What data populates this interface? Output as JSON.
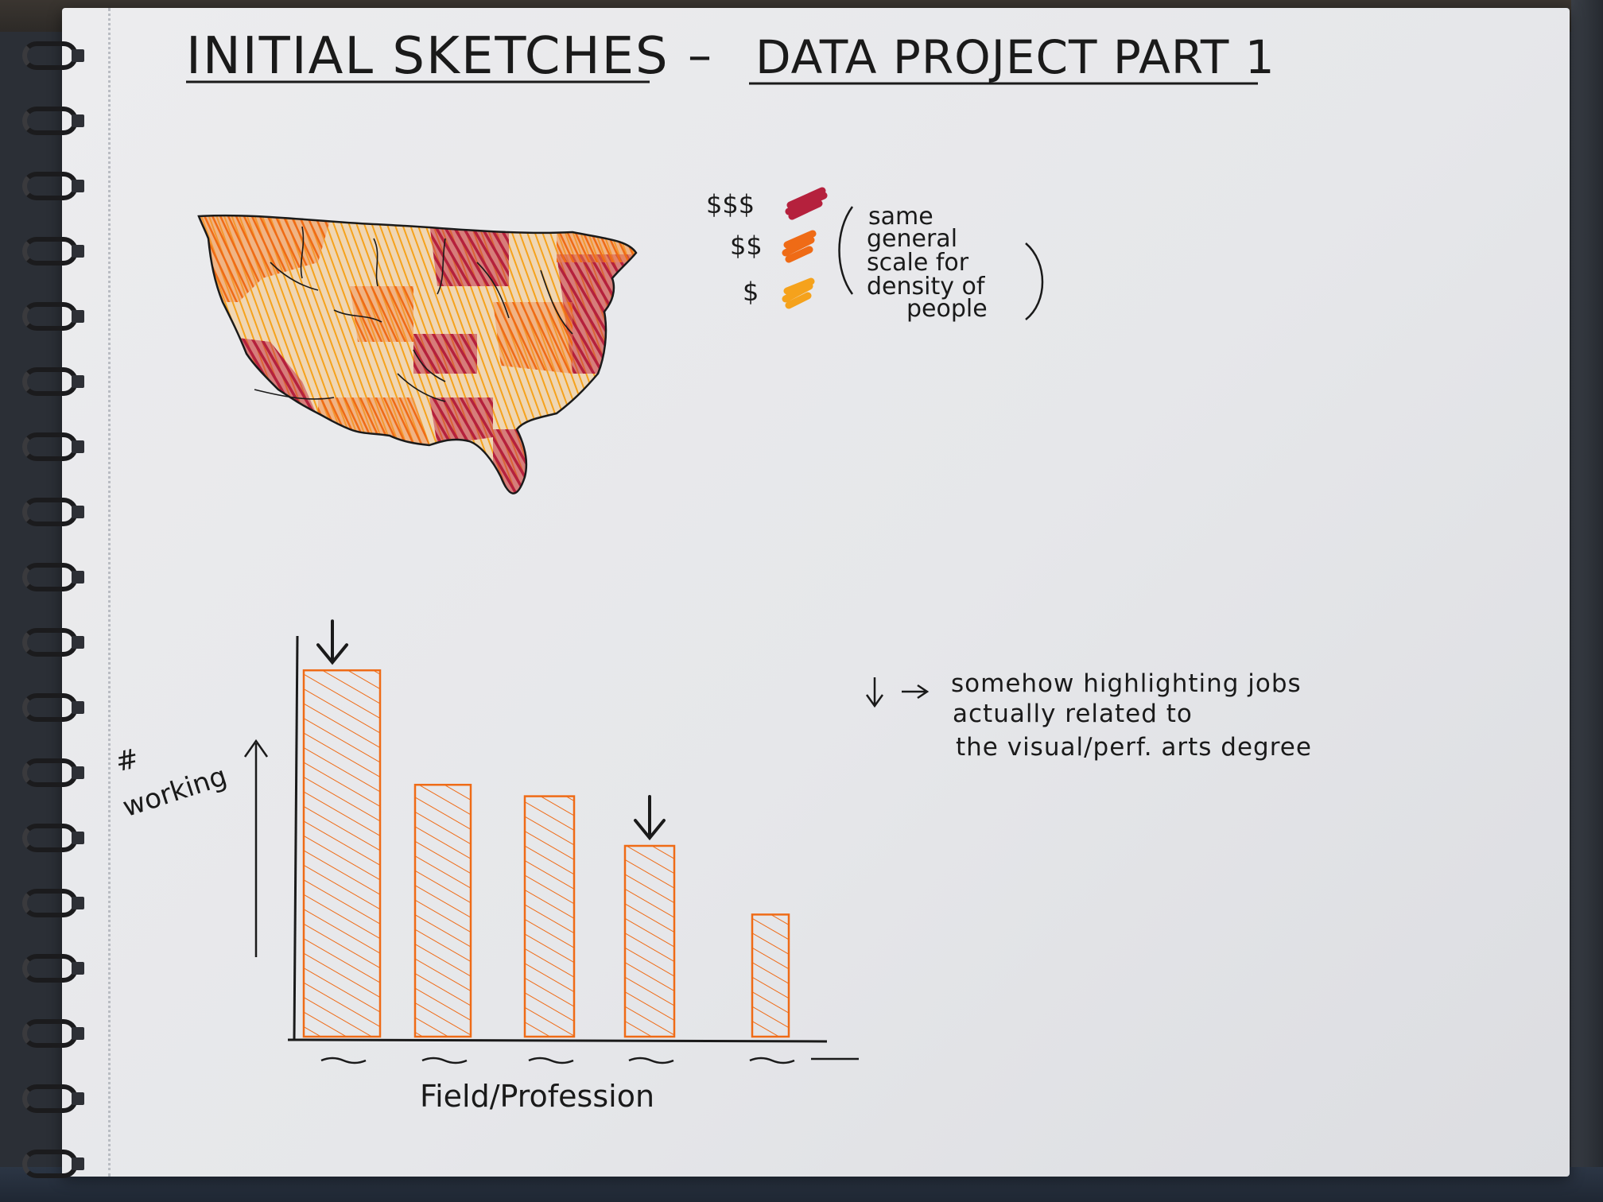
{
  "title": {
    "left": "INITIAL SKETCHES",
    "dash": "–",
    "right": "DATA PROJECT PART 1"
  },
  "map_legend": {
    "items": [
      {
        "label": "$$$",
        "color": "#b5213d"
      },
      {
        "label": "$$",
        "color": "#ef6b16"
      },
      {
        "label": "$",
        "color": "#f5a21c"
      }
    ],
    "note_lines": [
      "same",
      "general",
      "scale for",
      "density of",
      "people"
    ]
  },
  "chart_data": {
    "type": "bar",
    "ylabel_lines": [
      "#",
      "working"
    ],
    "xlabel": "Field/Profession",
    "values": [
      0.96,
      0.66,
      0.63,
      0.5,
      0.32
    ],
    "highlighted": [
      true,
      false,
      false,
      true,
      false
    ],
    "bar_color": "#ef6b16"
  },
  "annotation": {
    "lines": [
      "somehow highlighting jobs",
      "actually related to",
      "the visual/perf. arts degree"
    ]
  }
}
